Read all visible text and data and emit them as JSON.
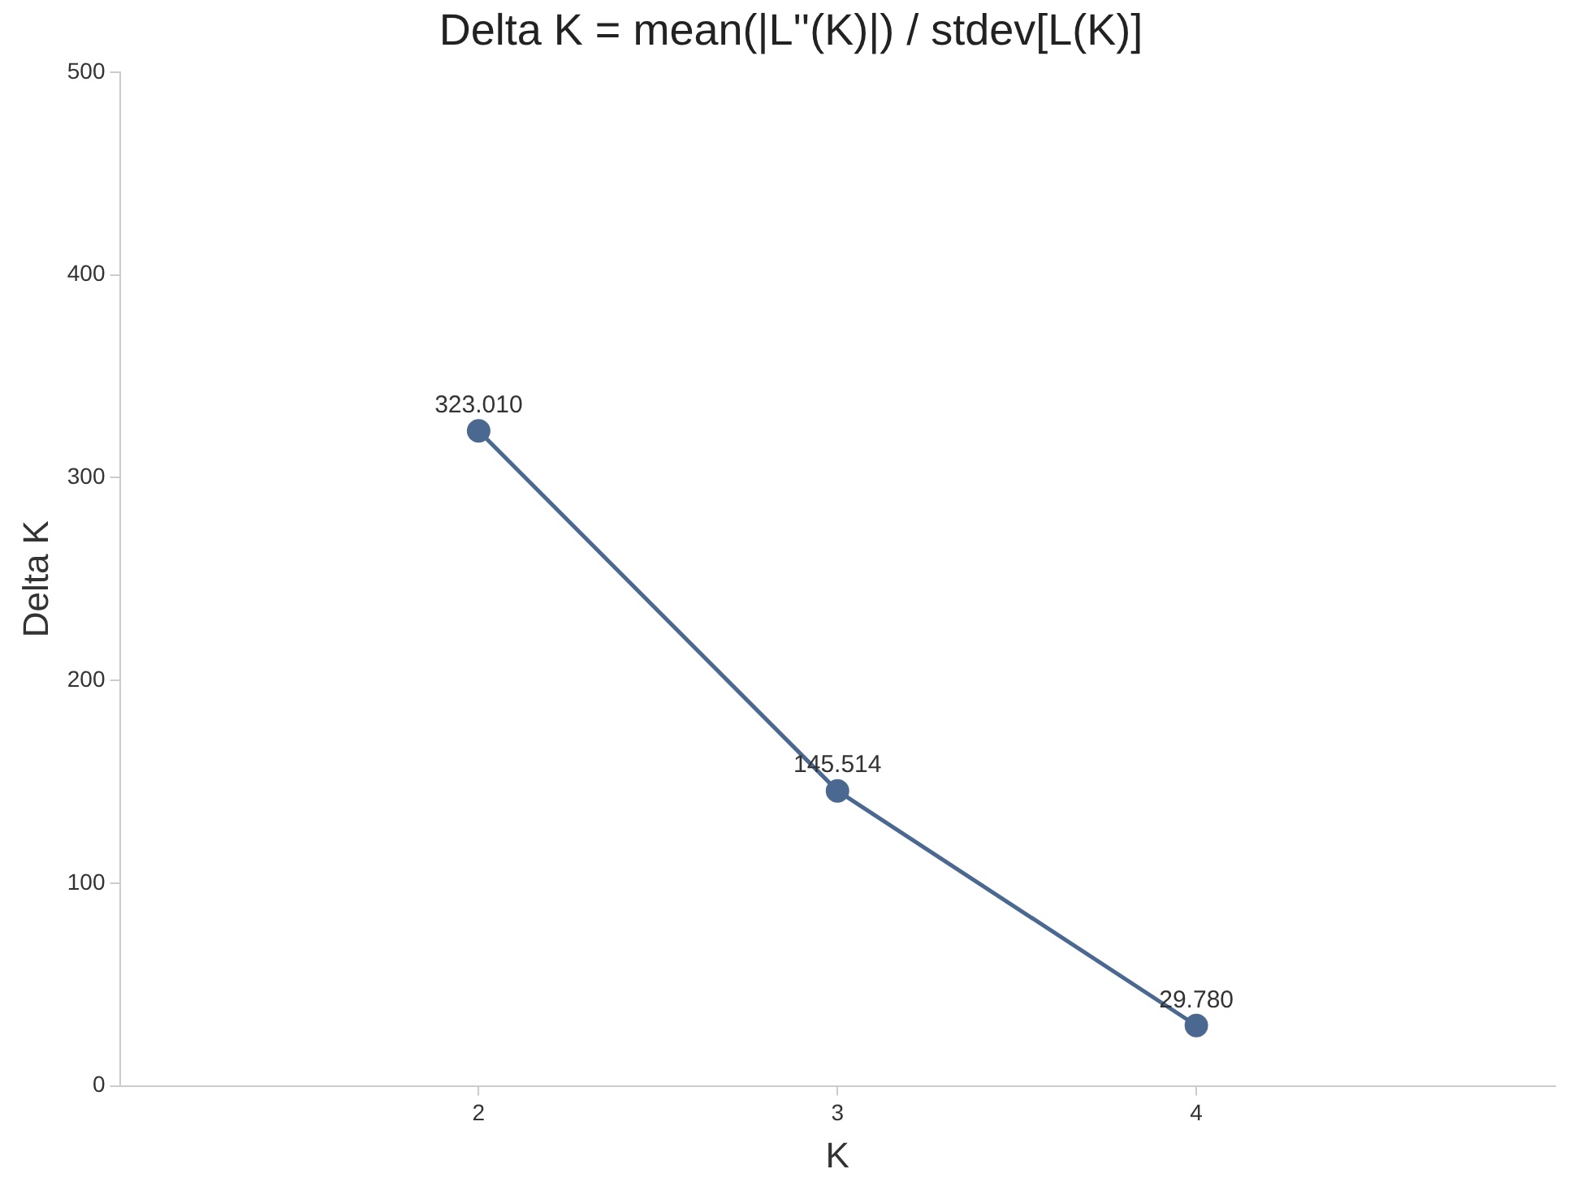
{
  "chart_data": {
    "type": "line",
    "title": "Delta K = mean(|L''(K)|) / stdev[L(K)]",
    "xlabel": "K",
    "ylabel": "Delta K",
    "x": [
      2,
      3,
      4
    ],
    "series": [
      {
        "color": "#4a6890",
        "values": [
          323.01,
          145.514,
          29.78
        ],
        "value_labels": [
          "323.010",
          "145.514",
          "29.780"
        ]
      }
    ],
    "xlim": [
      1,
      5
    ],
    "xticks": [
      2,
      3,
      4
    ],
    "ylim": [
      0,
      500
    ],
    "yticks": [
      0,
      100,
      200,
      300,
      400,
      500
    ],
    "grid": false,
    "legend": false,
    "marker": "circle",
    "line_style": "solid"
  }
}
